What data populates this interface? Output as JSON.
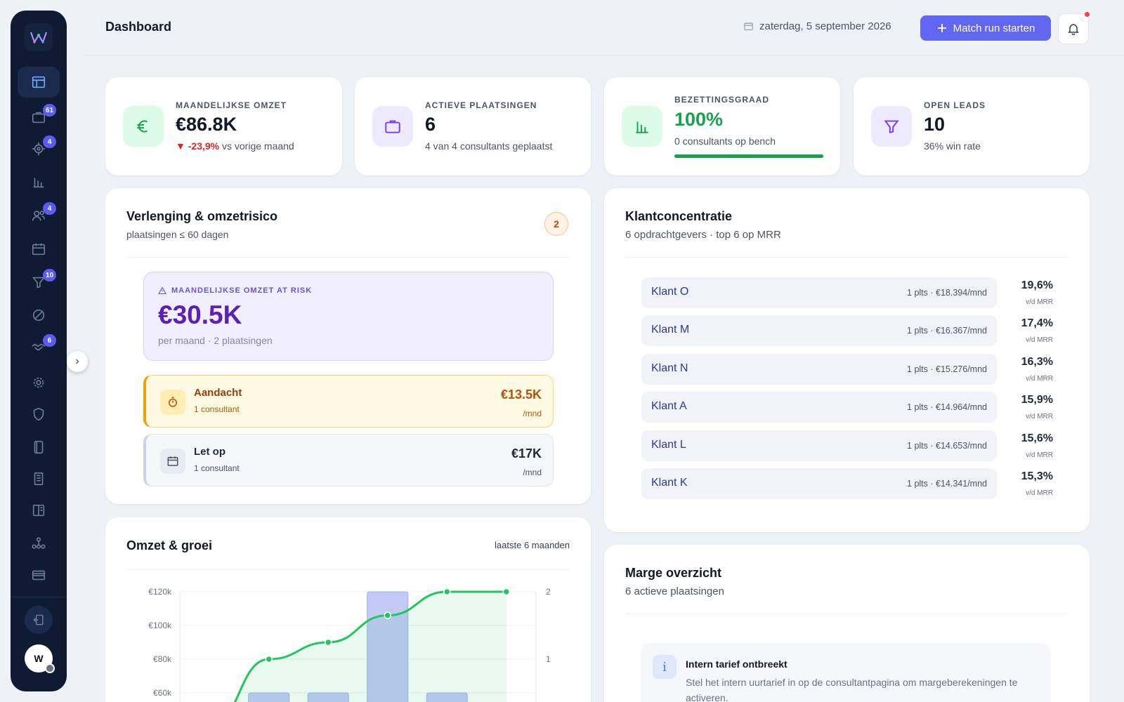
{
  "header": {
    "title": "Dashboard",
    "date": "zaterdag, 5 september 2026",
    "primary_button": "Match run starten"
  },
  "sidebar": {
    "avatar_initial": "W",
    "badges": {
      "placements": "61",
      "match": "4",
      "people": "4",
      "leads": "10",
      "deals": "6"
    }
  },
  "kpis": [
    {
      "label": "MAANDELIJKSE OMZET",
      "value": "€86.8K",
      "delta": "▼ -23,9%",
      "delta_suffix": "vs vorige maand",
      "icon": "euro-icon"
    },
    {
      "label": "ACTIEVE PLAATSINGEN",
      "value": "6",
      "sub": "4 van 4 consultants geplaatst",
      "icon": "briefcase-icon"
    },
    {
      "label": "BEZETTINGSGRAAD",
      "value": "100%",
      "sub": "0 consultants op bench",
      "progress": 100,
      "icon": "bar-chart-icon"
    },
    {
      "label": "OPEN LEADS",
      "value": "10",
      "sub": "36% win rate",
      "icon": "funnel-icon"
    }
  ],
  "risk": {
    "title": "Verlenging & omzetrisico",
    "subtitle": "plaatsingen ≤ 60 dagen",
    "count": "2",
    "at_risk_label": "MAANDELIJKSE OMZET AT RISK",
    "at_risk_value": "€30.5K",
    "at_risk_sub": "per maand · 2 plaatsingen",
    "rows": [
      {
        "name": "Aandacht",
        "count": "1 consultant",
        "amount": "€13.5K",
        "unit": "/mnd"
      },
      {
        "name": "Let op",
        "count": "1 consultant",
        "amount": "€17K",
        "unit": "/mnd"
      }
    ]
  },
  "clients": {
    "title": "Klantconcentratie",
    "subtitle": "6 opdrachtgevers · top 6 op MRR",
    "rows": [
      {
        "name": "Klant O",
        "meta": "1 plts · €18.394/mnd",
        "pct": "19,6%",
        "pct_sub": "v/d MRR"
      },
      {
        "name": "Klant M",
        "meta": "1 plts · €16.367/mnd",
        "pct": "17,4%",
        "pct_sub": "v/d MRR"
      },
      {
        "name": "Klant N",
        "meta": "1 plts · €15.276/mnd",
        "pct": "16,3%",
        "pct_sub": "v/d MRR"
      },
      {
        "name": "Klant A",
        "meta": "1 plts · €14.964/mnd",
        "pct": "15,9%",
        "pct_sub": "v/d MRR"
      },
      {
        "name": "Klant L",
        "meta": "1 plts · €14.653/mnd",
        "pct": "15,6%",
        "pct_sub": "v/d MRR"
      },
      {
        "name": "Klant K",
        "meta": "1 plts · €14.341/mnd",
        "pct": "15,3%",
        "pct_sub": "v/d MRR"
      }
    ]
  },
  "revenue": {
    "title": "Omzet & groei",
    "range": "laatste 6 maanden"
  },
  "margin": {
    "title": "Marge overzicht",
    "subtitle": "6 actieve plaatsingen",
    "info_title": "Intern tarief ontbreekt",
    "info_text": "Stel het intern uurtarief in op de consultantpagina om margeberekeningen te activeren."
  },
  "chart_data": {
    "type": "bar",
    "y_ticks": [
      "€120k",
      "€100k",
      "€80k",
      "€60k"
    ],
    "y_range": [
      40000,
      120000
    ],
    "y2_ticks": [
      "2",
      "1"
    ],
    "y2_range": [
      0,
      2
    ],
    "bar_values": [
      60000,
      60000,
      120000,
      60000
    ],
    "bar_slots": [
      1,
      2,
      3,
      4
    ],
    "line_values": [
      0,
      1,
      1.25,
      1.65,
      2,
      2
    ],
    "colors": {
      "bars": "#c5c9f6",
      "line": "#22c55e"
    }
  }
}
